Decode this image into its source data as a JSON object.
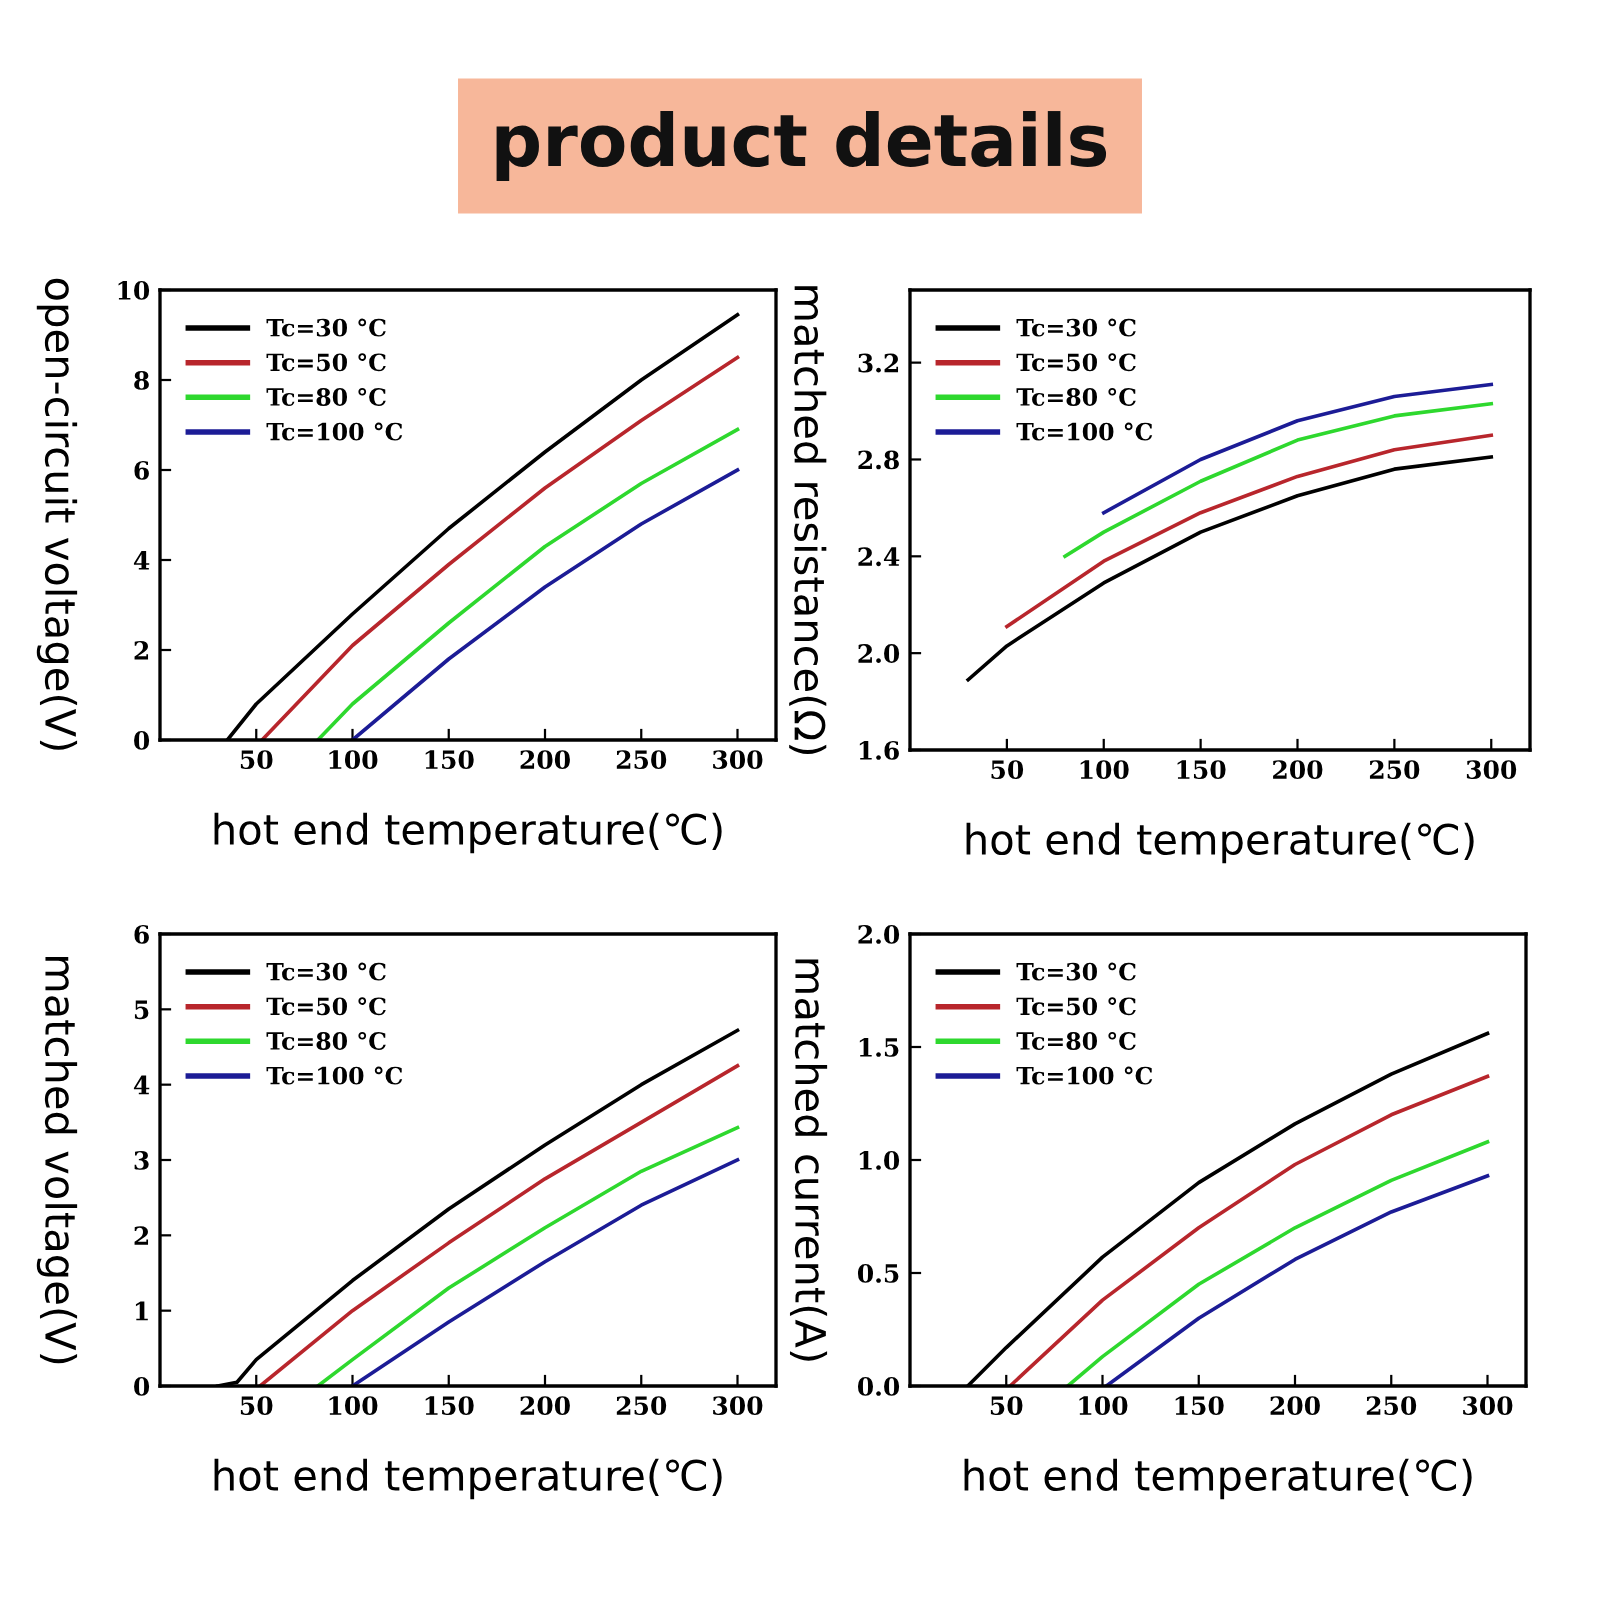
{
  "chart_data": [
    {
      "type": "line",
      "title": "product details",
      "xlabel": "hot end temperature(℃)",
      "ylabel": "open-circuit voltage(V)",
      "xlim": [
        0,
        320
      ],
      "xticks": [
        50,
        100,
        150,
        200,
        250,
        300
      ],
      "ylim": [
        0,
        10
      ],
      "yticks": [
        0,
        2,
        4,
        6,
        8,
        10
      ],
      "legend": "top left",
      "grid": false,
      "series": [
        {
          "name": "Tc=30 °C",
          "color": "#000000",
          "x": [
            35,
            50,
            100,
            150,
            200,
            250,
            300
          ],
          "values": [
            0,
            0.8,
            2.8,
            4.7,
            6.4,
            8.0,
            9.45
          ]
        },
        {
          "name": "Tc=50 °C",
          "color": "#b8262c",
          "x": [
            53,
            100,
            150,
            200,
            250,
            300
          ],
          "values": [
            0,
            2.1,
            3.9,
            5.6,
            7.1,
            8.5
          ]
        },
        {
          "name": "Tc=80 °C",
          "color": "#2ed82e",
          "x": [
            82,
            100,
            150,
            200,
            250,
            300
          ],
          "values": [
            0,
            0.8,
            2.6,
            4.3,
            5.7,
            6.9
          ]
        },
        {
          "name": "Tc=100 °C",
          "color": "#1c1c96",
          "x": [
            100,
            150,
            200,
            250,
            300
          ],
          "values": [
            0,
            1.8,
            3.4,
            4.8,
            6.0
          ]
        }
      ]
    },
    {
      "type": "line",
      "xlabel": "hot end temperature(℃)",
      "ylabel": "matched resistance(Ω)",
      "xlim": [
        0,
        320
      ],
      "xticks": [
        50,
        100,
        150,
        200,
        250,
        300
      ],
      "ylim": [
        1.6,
        3.5
      ],
      "yticks": [
        {
          "value": 1.6,
          "label": "1.6"
        },
        {
          "value": 2.0,
          "label": "2.0"
        },
        {
          "value": 2.4,
          "label": "2.4"
        },
        {
          "value": 2.8,
          "label": "2.8"
        },
        {
          "value": 3.2,
          "label": "3.2"
        }
      ],
      "legend": "top left",
      "grid": false,
      "series": [
        {
          "name": "Tc=30 °C",
          "color": "#000000",
          "x": [
            30,
            50,
            100,
            150,
            200,
            250,
            300
          ],
          "values": [
            1.89,
            2.03,
            2.29,
            2.5,
            2.65,
            2.76,
            2.81
          ]
        },
        {
          "name": "Tc=50 °C",
          "color": "#b8262c",
          "x": [
            50,
            100,
            150,
            200,
            250,
            300
          ],
          "values": [
            2.11,
            2.38,
            2.58,
            2.73,
            2.84,
            2.9
          ]
        },
        {
          "name": "Tc=80 °C",
          "color": "#2ed82e",
          "x": [
            80,
            100,
            150,
            200,
            250,
            300
          ],
          "values": [
            2.4,
            2.5,
            2.71,
            2.88,
            2.98,
            3.03
          ]
        },
        {
          "name": "Tc=100 °C",
          "color": "#1c1c96",
          "x": [
            100,
            150,
            200,
            250,
            300
          ],
          "values": [
            2.58,
            2.8,
            2.96,
            3.06,
            3.11
          ]
        }
      ]
    },
    {
      "type": "line",
      "xlabel": "hot end temperature(℃)",
      "ylabel": "matched voltage(V)",
      "xlim": [
        0,
        320
      ],
      "xticks": [
        50,
        100,
        150,
        200,
        250,
        300
      ],
      "ylim": [
        0,
        6
      ],
      "yticks": [
        0,
        1,
        2,
        3,
        4,
        5,
        6
      ],
      "legend": "top left",
      "grid": false,
      "series": [
        {
          "name": "Tc=30 °C",
          "color": "#000000",
          "x": [
            30,
            40,
            50,
            100,
            150,
            200,
            250,
            300
          ],
          "values": [
            0,
            0.05,
            0.35,
            1.4,
            2.35,
            3.2,
            4.0,
            4.72
          ]
        },
        {
          "name": "Tc=50 °C",
          "color": "#b8262c",
          "x": [
            52,
            100,
            150,
            200,
            250,
            300
          ],
          "values": [
            0,
            1.0,
            1.9,
            2.75,
            3.5,
            4.25
          ]
        },
        {
          "name": "Tc=80 °C",
          "color": "#2ed82e",
          "x": [
            82,
            100,
            150,
            200,
            250,
            300
          ],
          "values": [
            0,
            0.35,
            1.3,
            2.1,
            2.85,
            3.43
          ]
        },
        {
          "name": "Tc=100 °C",
          "color": "#1c1c96",
          "x": [
            100,
            150,
            200,
            250,
            300
          ],
          "values": [
            0,
            0.85,
            1.65,
            2.4,
            3.0
          ]
        }
      ]
    },
    {
      "type": "line",
      "xlabel": "hot end temperature(℃)",
      "ylabel": "matched current(A)",
      "xlim": [
        0,
        320
      ],
      "xticks": [
        50,
        100,
        150,
        200,
        250,
        300
      ],
      "ylim": [
        0,
        2
      ],
      "yticks": [
        {
          "value": 0,
          "label": "0.0"
        },
        {
          "value": 0.5,
          "label": "0.5"
        },
        {
          "value": 1.0,
          "label": "1.0"
        },
        {
          "value": 1.5,
          "label": "1.5"
        },
        {
          "value": 2.0,
          "label": "2.0"
        }
      ],
      "legend": "top left",
      "grid": false,
      "series": [
        {
          "name": "Tc=30 °C",
          "color": "#000000",
          "x": [
            30,
            50,
            100,
            150,
            200,
            250,
            300
          ],
          "values": [
            0,
            0.17,
            0.57,
            0.9,
            1.16,
            1.38,
            1.56
          ]
        },
        {
          "name": "Tc=50 °C",
          "color": "#b8262c",
          "x": [
            52,
            100,
            150,
            200,
            250,
            300
          ],
          "values": [
            0,
            0.38,
            0.7,
            0.98,
            1.2,
            1.37
          ]
        },
        {
          "name": "Tc=80 °C",
          "color": "#2ed82e",
          "x": [
            82,
            100,
            150,
            200,
            250,
            300
          ],
          "values": [
            0,
            0.13,
            0.45,
            0.7,
            0.91,
            1.08
          ]
        },
        {
          "name": "Tc=100 °C",
          "color": "#1c1c96",
          "x": [
            102,
            150,
            200,
            250,
            300
          ],
          "values": [
            0,
            0.3,
            0.56,
            0.77,
            0.93
          ]
        }
      ]
    }
  ]
}
